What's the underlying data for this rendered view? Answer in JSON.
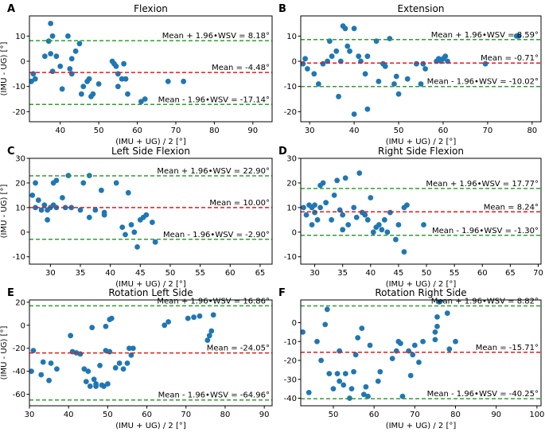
{
  "colors": {
    "points": "#1f77b4",
    "mean_line": "#e8171a",
    "loa_line": "#2ca02c",
    "axis": "#000000"
  },
  "chart_data": [
    {
      "letter": "A",
      "type": "scatter",
      "title": "Flexion",
      "xlabel": "(IMU + UG) / 2 [°]",
      "ylabel": "(IMU - UG) [°]",
      "xlim": [
        32,
        95
      ],
      "ylim": [
        -24,
        18
      ],
      "xticks": [
        40,
        50,
        60,
        70,
        80,
        90
      ],
      "yticks": [
        -20,
        -10,
        0,
        10
      ],
      "mean": -4.48,
      "upper": 8.18,
      "lower": -17.14,
      "mean_label": "Mean = -4.48°",
      "upper_label": "Mean + 1.96•WSV = 8.18°",
      "lower_label": "Mean - 1.96•WSV = -17.14°",
      "points": [
        [
          32.5,
          -8
        ],
        [
          33,
          -5
        ],
        [
          33.5,
          -7
        ],
        [
          36,
          2
        ],
        [
          37,
          8
        ],
        [
          37.5,
          15
        ],
        [
          38,
          10
        ],
        [
          37.5,
          3
        ],
        [
          38,
          -4
        ],
        [
          39,
          2
        ],
        [
          40,
          -2
        ],
        [
          40.5,
          -11
        ],
        [
          42,
          10
        ],
        [
          42.5,
          -3
        ],
        [
          43,
          -5
        ],
        [
          43,
          1
        ],
        [
          44,
          4
        ],
        [
          45,
          7
        ],
        [
          45.5,
          -13
        ],
        [
          46,
          -10
        ],
        [
          47,
          -8
        ],
        [
          47.5,
          -7
        ],
        [
          48,
          -14
        ],
        [
          48.5,
          -13
        ],
        [
          50,
          -9
        ],
        [
          53.5,
          0
        ],
        [
          54,
          -1
        ],
        [
          54.5,
          -2
        ],
        [
          55,
          -5
        ],
        [
          55,
          -10
        ],
        [
          56,
          -7
        ],
        [
          56.5,
          -1
        ],
        [
          57,
          -7
        ],
        [
          57.5,
          -13
        ],
        [
          61,
          -16
        ],
        [
          62,
          -15
        ],
        [
          68,
          -8
        ],
        [
          72,
          -8
        ]
      ]
    },
    {
      "letter": "B",
      "type": "scatter",
      "title": "Extension",
      "xlabel": "(IMU + UG) / 2 [°]",
      "ylabel": "",
      "xlim": [
        28,
        82
      ],
      "ylim": [
        -24,
        18
      ],
      "xticks": [
        30,
        40,
        50,
        60,
        70,
        80
      ],
      "yticks": [
        -20,
        -10,
        0,
        10
      ],
      "mean": -0.71,
      "upper": 8.59,
      "lower": -10.02,
      "mean_label": "Mean = -0.71°",
      "upper_label": "Mean + 1.96•WSV = 8.59°",
      "lower_label": "Mean - 1.96•WSV = -10.02°",
      "points": [
        [
          28.5,
          -1
        ],
        [
          29,
          1
        ],
        [
          29.5,
          -3
        ],
        [
          31,
          -5
        ],
        [
          32,
          -9
        ],
        [
          33,
          -1
        ],
        [
          34,
          0
        ],
        [
          34.5,
          8
        ],
        [
          35,
          2
        ],
        [
          36,
          4
        ],
        [
          36.5,
          -14
        ],
        [
          37,
          0
        ],
        [
          37.5,
          14
        ],
        [
          38,
          13
        ],
        [
          38.5,
          6
        ],
        [
          39,
          4
        ],
        [
          40,
          13
        ],
        [
          40,
          -21
        ],
        [
          41,
          2
        ],
        [
          41.5,
          0
        ],
        [
          42.5,
          -5
        ],
        [
          43,
          2
        ],
        [
          43,
          -19
        ],
        [
          45,
          8
        ],
        [
          45.5,
          -8
        ],
        [
          46.5,
          -1
        ],
        [
          47,
          -2
        ],
        [
          48,
          9
        ],
        [
          49,
          -9
        ],
        [
          49.5,
          -6
        ],
        [
          50,
          -13
        ],
        [
          52,
          -7
        ],
        [
          54,
          -1
        ],
        [
          55,
          -9
        ],
        [
          55.5,
          -1
        ],
        [
          56,
          -3
        ],
        [
          58.5,
          0
        ],
        [
          59,
          1
        ],
        [
          59.5,
          0
        ],
        [
          60,
          1
        ],
        [
          60.5,
          2
        ],
        [
          61,
          0
        ],
        [
          69.5,
          -1
        ],
        [
          76.5,
          10
        ],
        [
          77,
          10
        ]
      ]
    },
    {
      "letter": "C",
      "type": "scatter",
      "title": "Left Side Flexion",
      "xlabel": "(IMU + UG) / 2 [°]",
      "ylabel": "(IMU - UG) [°]",
      "xlim": [
        26.5,
        67
      ],
      "ylim": [
        -13,
        30
      ],
      "xticks": [
        30,
        35,
        40,
        45,
        50,
        55,
        60,
        65
      ],
      "yticks": [
        -10,
        0,
        10,
        20,
        30
      ],
      "mean": 10.0,
      "upper": 22.9,
      "lower": -2.9,
      "mean_label": "Mean = 10.00°",
      "upper_label": "Mean + 1.96•WSV = 22.90°",
      "lower_label": "Mean - 1.96•WSV = -2.90°",
      "points": [
        [
          27,
          15
        ],
        [
          27.5,
          20
        ],
        [
          27.5,
          10
        ],
        [
          28,
          13
        ],
        [
          28.5,
          9
        ],
        [
          29,
          11
        ],
        [
          29.5,
          9
        ],
        [
          29.5,
          5
        ],
        [
          30,
          10
        ],
        [
          30.5,
          20
        ],
        [
          30.5,
          11
        ],
        [
          31,
          21
        ],
        [
          31,
          10
        ],
        [
          32,
          14
        ],
        [
          32.5,
          10
        ],
        [
          33,
          23
        ],
        [
          33.5,
          10
        ],
        [
          35,
          9
        ],
        [
          35.5,
          20
        ],
        [
          36.5,
          23
        ],
        [
          36.5,
          6
        ],
        [
          37.5,
          9
        ],
        [
          38.5,
          17
        ],
        [
          39,
          8
        ],
        [
          39,
          7
        ],
        [
          41,
          20
        ],
        [
          42,
          2
        ],
        [
          42.5,
          -1
        ],
        [
          43,
          16
        ],
        [
          43.5,
          3
        ],
        [
          44,
          0
        ],
        [
          44.5,
          -6
        ],
        [
          45,
          5
        ],
        [
          45.5,
          6
        ],
        [
          46,
          7
        ],
        [
          47,
          4
        ],
        [
          47.5,
          -4
        ]
      ]
    },
    {
      "letter": "D",
      "type": "scatter",
      "title": "Right Side Flexion",
      "xlabel": "(IMU + UG) / 2 [°]",
      "ylabel": "",
      "xlim": [
        27.5,
        70.5
      ],
      "ylim": [
        -13,
        30
      ],
      "xticks": [
        30,
        35,
        40,
        45,
        50,
        55,
        60,
        65,
        70
      ],
      "yticks": [
        -10,
        0,
        10,
        20,
        30
      ],
      "mean": 8.24,
      "upper": 17.77,
      "lower": -1.3,
      "mean_label": "Mean = 8.24°",
      "upper_label": "Mean + 1.96•WSV = 17.77°",
      "lower_label": "Mean - 1.96•WSV = -1.30°",
      "points": [
        [
          28,
          10
        ],
        [
          28.5,
          7
        ],
        [
          29,
          11
        ],
        [
          29.5,
          3
        ],
        [
          29.5,
          10
        ],
        [
          30,
          8
        ],
        [
          30,
          11
        ],
        [
          30.5,
          5
        ],
        [
          31,
          19
        ],
        [
          31,
          10
        ],
        [
          31.5,
          20
        ],
        [
          32,
          12
        ],
        [
          33,
          5
        ],
        [
          33.5,
          15
        ],
        [
          34,
          21
        ],
        [
          34.5,
          9
        ],
        [
          35,
          1
        ],
        [
          35,
          7
        ],
        [
          35.5,
          22
        ],
        [
          36,
          3
        ],
        [
          37,
          10
        ],
        [
          37.5,
          6
        ],
        [
          38,
          24
        ],
        [
          38.5,
          8
        ],
        [
          39,
          7
        ],
        [
          39.5,
          5
        ],
        [
          40,
          14
        ],
        [
          40.5,
          0
        ],
        [
          41,
          2
        ],
        [
          41.5,
          3
        ],
        [
          42,
          1
        ],
        [
          42.5,
          5
        ],
        [
          43,
          0
        ],
        [
          43.5,
          8
        ],
        [
          44.5,
          -3
        ],
        [
          45,
          3
        ],
        [
          46,
          10
        ],
        [
          46,
          -8
        ],
        [
          46.5,
          11
        ],
        [
          49.5,
          3
        ]
      ]
    },
    {
      "letter": "E",
      "type": "scatter",
      "title": "Rotation Left Side",
      "xlabel": "(IMU + UG) / 2 [°]",
      "ylabel": "(IMU - UG) [°]",
      "xlim": [
        30,
        92
      ],
      "ylim": [
        -70,
        22
      ],
      "xticks": [
        30,
        40,
        50,
        60,
        70,
        80,
        90
      ],
      "yticks": [
        -60,
        -40,
        -20,
        0,
        20
      ],
      "mean": -24.05,
      "upper": 16.86,
      "lower": -64.96,
      "mean_label": "Mean = -24.05°",
      "upper_label": "Mean + 1.96•WSV = 16.86°",
      "lower_label": "Mean - 1.96•WSV = -64.96°",
      "points": [
        [
          30.5,
          -40
        ],
        [
          31,
          -22
        ],
        [
          33,
          -43
        ],
        [
          33.5,
          -32
        ],
        [
          35,
          -48
        ],
        [
          35.5,
          -33
        ],
        [
          37,
          -38
        ],
        [
          40.5,
          -9
        ],
        [
          41,
          -23
        ],
        [
          42,
          -24
        ],
        [
          43,
          -25
        ],
        [
          44,
          -38
        ],
        [
          44.5,
          -49
        ],
        [
          45,
          -40
        ],
        [
          45.5,
          -53
        ],
        [
          46,
          -2
        ],
        [
          46.5,
          -47
        ],
        [
          47,
          -51
        ],
        [
          47,
          -53
        ],
        [
          48,
          -35
        ],
        [
          48.5,
          -52
        ],
        [
          49,
          -53
        ],
        [
          49.5,
          -22
        ],
        [
          49.5,
          -1
        ],
        [
          50,
          -51
        ],
        [
          50.5,
          5
        ],
        [
          50.5,
          -23
        ],
        [
          51,
          6
        ],
        [
          52,
          -37
        ],
        [
          53,
          -33
        ],
        [
          54,
          -38
        ],
        [
          55,
          -33
        ],
        [
          55.5,
          -20
        ],
        [
          56,
          -26
        ],
        [
          56.5,
          -20
        ],
        [
          64.5,
          0
        ],
        [
          65.5,
          3
        ],
        [
          70.5,
          6
        ],
        [
          72,
          7
        ],
        [
          73.5,
          8
        ],
        [
          75.5,
          -13
        ],
        [
          76,
          -9
        ],
        [
          76.5,
          -5
        ],
        [
          77,
          9
        ]
      ]
    },
    {
      "letter": "F",
      "type": "scatter",
      "title": "Rotation Right Side",
      "xlabel": "(IMU + UG) / 2 [°]",
      "ylabel": "",
      "xlim": [
        42,
        101
      ],
      "ylim": [
        -44,
        12
      ],
      "xticks": [
        50,
        60,
        70,
        80,
        90,
        100
      ],
      "yticks": [
        -40,
        -30,
        -20,
        -10,
        0
      ],
      "mean": -15.71,
      "upper": 8.82,
      "lower": -40.25,
      "mean_label": "Mean = -15.71°",
      "upper_label": "Mean + 1.96•WSV = 8.82°",
      "lower_label": "Mean - 1.96•WSV = -40.25°",
      "points": [
        [
          42.5,
          -5
        ],
        [
          44,
          -37
        ],
        [
          46,
          -10
        ],
        [
          47,
          -20
        ],
        [
          48,
          -1
        ],
        [
          48.5,
          7
        ],
        [
          49,
          -27
        ],
        [
          50,
          -35
        ],
        [
          51,
          -27
        ],
        [
          51.5,
          -31
        ],
        [
          51.5,
          -15
        ],
        [
          52.5,
          -33
        ],
        [
          53,
          -27
        ],
        [
          54,
          -40
        ],
        [
          54.5,
          -35
        ],
        [
          55,
          -26
        ],
        [
          55.5,
          -17
        ],
        [
          56,
          -8
        ],
        [
          57,
          -3
        ],
        [
          57.5,
          -38
        ],
        [
          58,
          -34
        ],
        [
          58.5,
          -39
        ],
        [
          59,
          -12
        ],
        [
          61,
          -31
        ],
        [
          61.5,
          -26
        ],
        [
          64.5,
          -19
        ],
        [
          65.5,
          -15
        ],
        [
          66,
          -10
        ],
        [
          66.5,
          -11
        ],
        [
          67,
          -39
        ],
        [
          68.5,
          -15
        ],
        [
          69,
          -28
        ],
        [
          69.5,
          -17
        ],
        [
          70,
          -12
        ],
        [
          71,
          -21
        ],
        [
          72,
          -10
        ],
        [
          75,
          -9
        ],
        [
          75,
          -5
        ],
        [
          75.5,
          -2
        ],
        [
          75.5,
          3
        ],
        [
          76,
          11
        ],
        [
          76.5,
          12
        ],
        [
          78,
          5
        ],
        [
          78.5,
          -14
        ],
        [
          80,
          -10
        ]
      ]
    }
  ]
}
